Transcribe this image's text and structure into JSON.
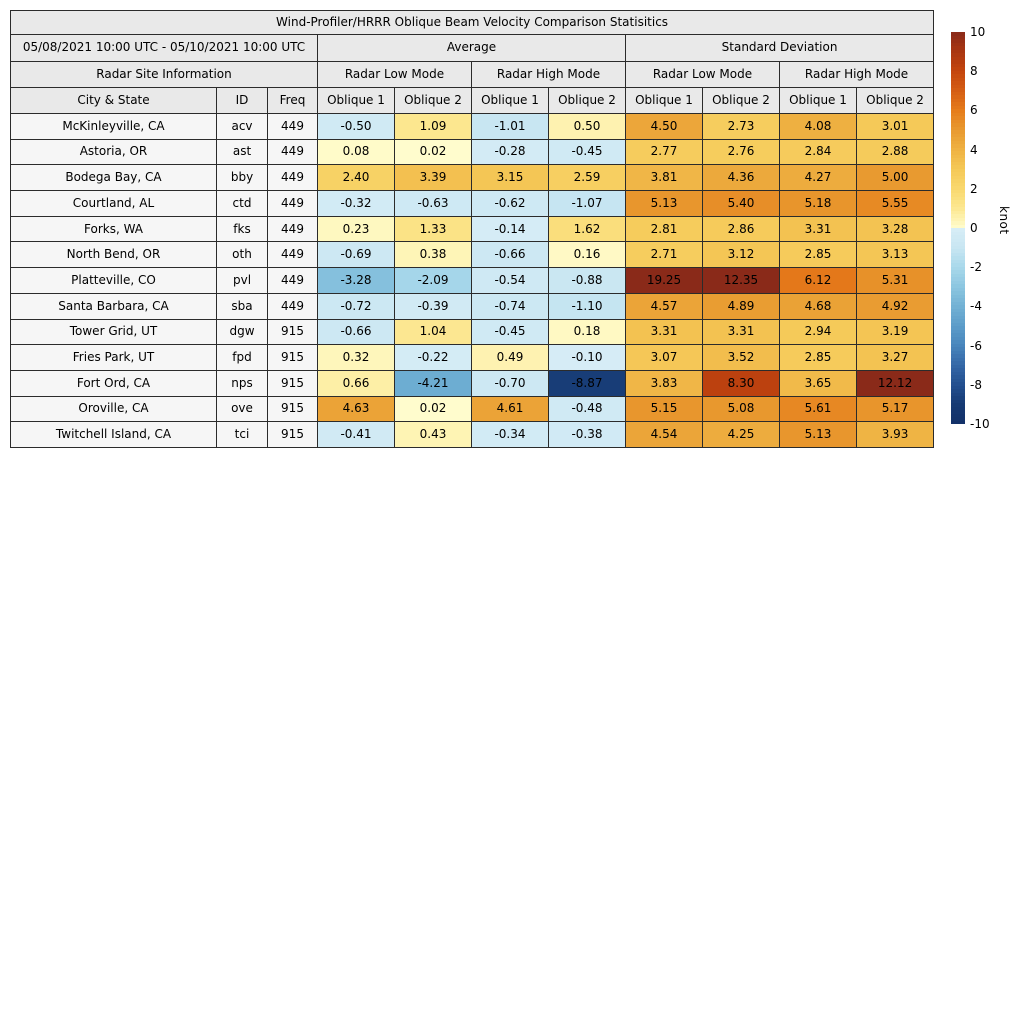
{
  "chart_data": {
    "type": "table",
    "title": "Wind-Profiler/HRRR Oblique Beam Velocity Comparison Statisitics",
    "period_label": "05/08/2021 10:00 UTC - 05/10/2021 10:00 UTC",
    "section_headers": {
      "site_info": "Radar Site Information",
      "average": "Average",
      "std_dev": "Standard Deviation"
    },
    "mode_labels": {
      "low": "Radar Low Mode",
      "high": "Radar High Mode"
    },
    "column_labels": {
      "city": "City & State",
      "id": "ID",
      "freq": "Freq",
      "ob1": "Oblique 1",
      "ob2": "Oblique 2"
    },
    "value_columns": [
      "avg_low_oblique1",
      "avg_low_oblique2",
      "avg_high_oblique1",
      "avg_high_oblique2",
      "std_low_oblique1",
      "std_low_oblique2",
      "std_high_oblique1",
      "std_high_oblique2"
    ],
    "rows": [
      {
        "city": "McKinleyville, CA",
        "id": "acv",
        "freq": "449",
        "values": [
          -0.5,
          1.09,
          -1.01,
          0.5,
          4.5,
          2.73,
          4.08,
          3.01
        ]
      },
      {
        "city": "Astoria, OR",
        "id": "ast",
        "freq": "449",
        "values": [
          0.08,
          0.02,
          -0.28,
          -0.45,
          2.77,
          2.76,
          2.84,
          2.88
        ]
      },
      {
        "city": "Bodega Bay, CA",
        "id": "bby",
        "freq": "449",
        "values": [
          2.4,
          3.39,
          3.15,
          2.59,
          3.81,
          4.36,
          4.27,
          5.0
        ]
      },
      {
        "city": "Courtland, AL",
        "id": "ctd",
        "freq": "449",
        "values": [
          -0.32,
          -0.63,
          -0.62,
          -1.07,
          5.13,
          5.4,
          5.18,
          5.55
        ]
      },
      {
        "city": "Forks, WA",
        "id": "fks",
        "freq": "449",
        "values": [
          0.23,
          1.33,
          -0.14,
          1.62,
          2.81,
          2.86,
          3.31,
          3.28
        ]
      },
      {
        "city": "North Bend, OR",
        "id": "oth",
        "freq": "449",
        "values": [
          -0.69,
          0.38,
          -0.66,
          0.16,
          2.71,
          3.12,
          2.85,
          3.13
        ]
      },
      {
        "city": "Platteville, CO",
        "id": "pvl",
        "freq": "449",
        "values": [
          -3.28,
          -2.09,
          -0.54,
          -0.88,
          19.25,
          12.35,
          6.12,
          5.31
        ]
      },
      {
        "city": "Santa Barbara, CA",
        "id": "sba",
        "freq": "449",
        "values": [
          -0.72,
          -0.39,
          -0.74,
          -1.1,
          4.57,
          4.89,
          4.68,
          4.92
        ]
      },
      {
        "city": "Tower Grid, UT",
        "id": "dgw",
        "freq": "915",
        "values": [
          -0.66,
          1.04,
          -0.45,
          0.18,
          3.31,
          3.31,
          2.94,
          3.19
        ]
      },
      {
        "city": "Fries Park, UT",
        "id": "fpd",
        "freq": "915",
        "values": [
          0.32,
          -0.22,
          0.49,
          -0.1,
          3.07,
          3.52,
          2.85,
          3.27
        ]
      },
      {
        "city": "Fort Ord, CA",
        "id": "nps",
        "freq": "915",
        "values": [
          0.66,
          -4.21,
          -0.7,
          -8.87,
          3.83,
          8.3,
          3.65,
          12.12
        ]
      },
      {
        "city": "Oroville, CA",
        "id": "ove",
        "freq": "915",
        "values": [
          4.63,
          0.02,
          4.61,
          -0.48,
          5.15,
          5.08,
          5.61,
          5.17
        ]
      },
      {
        "city": "Twitchell Island, CA",
        "id": "tci",
        "freq": "915",
        "values": [
          -0.41,
          0.43,
          -0.34,
          -0.38,
          4.54,
          4.25,
          5.13,
          3.93
        ]
      }
    ],
    "colorbar": {
      "label": "knot",
      "min": -10,
      "max": 10,
      "tick_values": [
        10,
        8,
        6,
        4,
        2,
        0,
        -2,
        -4,
        -6,
        -8,
        -10
      ],
      "colormap_stops": [
        [
          -10,
          [
            19,
            48,
            104
          ]
        ],
        [
          -9,
          [
            22,
            58,
            115
          ]
        ],
        [
          -8,
          [
            35,
            79,
            143
          ]
        ],
        [
          -7,
          [
            52,
            103,
            166
          ]
        ],
        [
          -6,
          [
            72,
            133,
            188
          ]
        ],
        [
          -5,
          [
            92,
            156,
            201
          ]
        ],
        [
          -4,
          [
            114,
            177,
            212
          ]
        ],
        [
          -3,
          [
            140,
            198,
            224
          ]
        ],
        [
          -2,
          [
            168,
            216,
            235
          ]
        ],
        [
          -1,
          [
            200,
            230,
            242
          ]
        ],
        [
          -0.02,
          [
            215,
            237,
            246
          ]
        ],
        [
          0.02,
          [
            255,
            252,
            205
          ]
        ],
        [
          1,
          [
            252,
            232,
            146
          ]
        ],
        [
          2,
          [
            249,
            216,
            110
          ]
        ],
        [
          3,
          [
            245,
            201,
            88
          ]
        ],
        [
          4,
          [
            239,
            178,
            67
          ]
        ],
        [
          5,
          [
            232,
            154,
            48
          ]
        ],
        [
          6,
          [
            230,
            124,
            27
          ]
        ],
        [
          7,
          [
            213,
            94,
            20
          ]
        ],
        [
          8,
          [
            196,
            70,
            14
          ]
        ],
        [
          9,
          [
            170,
            54,
            17
          ]
        ],
        [
          10,
          [
            138,
            42,
            25
          ]
        ]
      ]
    },
    "layout": {
      "grid": "table with per-cell heatmap fill",
      "colorbar_position": "right",
      "header_bg": "#e9e9e9",
      "site_cell_bg": "#f6f6f6",
      "border_color": "#2b2b2b"
    }
  }
}
